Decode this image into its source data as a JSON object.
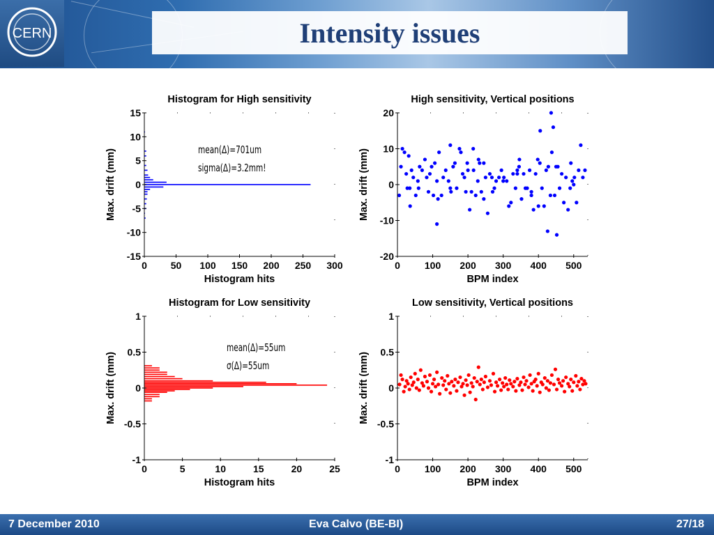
{
  "header": {
    "title": "Intensity issues",
    "logo_text": "CERN",
    "accent": "#1f3f77"
  },
  "footer": {
    "date": "7 December 2010",
    "author": "Eva Calvo (BE-BI)",
    "page": "27/18"
  },
  "annotations": {
    "high": [
      "mean(Δ)=701um",
      "sigma(Δ)=3.2mm!"
    ],
    "low": [
      "mean(Δ)=55um",
      "σ(Δ)=55um"
    ]
  },
  "chart_data": [
    {
      "id": "high-hist",
      "type": "bar",
      "orientation": "horizontal",
      "title": "Histogram for High sensitivity",
      "xlabel": "Histogram hits",
      "ylabel": "Max. drift (mm)",
      "xlim": [
        0,
        300
      ],
      "ylim": [
        -15,
        15
      ],
      "xticks": [
        0,
        50,
        100,
        150,
        200,
        250,
        300
      ],
      "yticks": [
        15,
        10,
        5,
        0,
        -5,
        -10,
        -15
      ],
      "color": "#0000ff",
      "bins": [
        {
          "y": 11.0,
          "count": 1
        },
        {
          "y": 7.0,
          "count": 3
        },
        {
          "y": 6.0,
          "count": 3
        },
        {
          "y": 4.0,
          "count": 3
        },
        {
          "y": 3.0,
          "count": 5
        },
        {
          "y": 2.0,
          "count": 6
        },
        {
          "y": 1.5,
          "count": 9
        },
        {
          "y": 1.0,
          "count": 14
        },
        {
          "y": 0.5,
          "count": 35
        },
        {
          "y": 0.0,
          "count": 262
        },
        {
          "y": -0.5,
          "count": 30
        },
        {
          "y": -1.0,
          "count": 9
        },
        {
          "y": -1.5,
          "count": 5
        },
        {
          "y": -2.0,
          "count": 5
        },
        {
          "y": -3.0,
          "count": 4
        },
        {
          "y": -4.0,
          "count": 3
        },
        {
          "y": -5.0,
          "count": 3
        },
        {
          "y": -6.0,
          "count": 1
        },
        {
          "y": -7.0,
          "count": 2
        }
      ]
    },
    {
      "id": "high-scatter",
      "type": "scatter",
      "title": "High sensitivity, Vertical positions",
      "xlabel": "BPM index",
      "ylabel": "Max. drift (mm)",
      "xlim": [
        0,
        540
      ],
      "ylim": [
        -20,
        20
      ],
      "xticks": [
        0,
        100,
        200,
        300,
        400,
        500
      ],
      "yticks": [
        20,
        10,
        0,
        -10,
        -20
      ],
      "color": "#0000ff",
      "points": [
        [
          5,
          -3
        ],
        [
          10,
          5
        ],
        [
          14,
          10
        ],
        [
          20,
          9
        ],
        [
          25,
          3
        ],
        [
          28,
          -1
        ],
        [
          32,
          8
        ],
        [
          36,
          -6
        ],
        [
          40,
          4
        ],
        [
          45,
          2
        ],
        [
          52,
          -3
        ],
        [
          58,
          1
        ],
        [
          63,
          5
        ],
        [
          70,
          4
        ],
        [
          78,
          7
        ],
        [
          83,
          2
        ],
        [
          88,
          -2
        ],
        [
          92,
          3
        ],
        [
          97,
          5
        ],
        [
          102,
          -3
        ],
        [
          106,
          6
        ],
        [
          112,
          1
        ],
        [
          115,
          -4
        ],
        [
          118,
          9
        ],
        [
          125,
          -3
        ],
        [
          130,
          2
        ],
        [
          137,
          4
        ],
        [
          145,
          1
        ],
        [
          152,
          -2
        ],
        [
          158,
          5
        ],
        [
          163,
          6
        ],
        [
          168,
          -1
        ],
        [
          176,
          10
        ],
        [
          180,
          9
        ],
        [
          185,
          3
        ],
        [
          190,
          2
        ],
        [
          194,
          -2
        ],
        [
          198,
          6
        ],
        [
          205,
          -7
        ],
        [
          210,
          -2
        ],
        [
          216,
          4
        ],
        [
          222,
          -3
        ],
        [
          228,
          1
        ],
        [
          233,
          6
        ],
        [
          238,
          -2
        ],
        [
          245,
          -4
        ],
        [
          250,
          2
        ],
        [
          256,
          -8
        ],
        [
          262,
          3
        ],
        [
          268,
          2
        ],
        [
          275,
          -1
        ],
        [
          280,
          1
        ],
        [
          288,
          2
        ],
        [
          295,
          4
        ],
        [
          302,
          2
        ],
        [
          310,
          1
        ],
        [
          316,
          -6
        ],
        [
          322,
          -5
        ],
        [
          328,
          3
        ],
        [
          335,
          -1
        ],
        [
          340,
          4
        ],
        [
          346,
          7
        ],
        [
          352,
          -4
        ],
        [
          358,
          3
        ],
        [
          363,
          -1
        ],
        [
          368,
          -1
        ],
        [
          375,
          4
        ],
        [
          380,
          -2
        ],
        [
          386,
          -7
        ],
        [
          392,
          3
        ],
        [
          398,
          7
        ],
        [
          404,
          6
        ],
        [
          410,
          -1
        ],
        [
          416,
          -6
        ],
        [
          422,
          4
        ],
        [
          428,
          5
        ],
        [
          434,
          -3
        ],
        [
          438,
          9
        ],
        [
          442,
          16
        ],
        [
          446,
          -3
        ],
        [
          450,
          5
        ],
        [
          455,
          5
        ],
        [
          460,
          -1
        ],
        [
          466,
          3
        ],
        [
          472,
          -5
        ],
        [
          478,
          2
        ],
        [
          484,
          -7
        ],
        [
          490,
          -1
        ],
        [
          496,
          1
        ],
        [
          502,
          2
        ],
        [
          508,
          -5
        ],
        [
          514,
          4
        ],
        [
          520,
          11
        ],
        [
          526,
          2
        ],
        [
          532,
          4
        ],
        [
          300,
          1
        ],
        [
          112,
          -11
        ],
        [
          215,
          10
        ],
        [
          380,
          -3
        ],
        [
          426,
          -13
        ],
        [
          452,
          -14
        ],
        [
          230,
          7
        ],
        [
          270,
          -2
        ],
        [
          400,
          -6
        ],
        [
          492,
          6
        ],
        [
          35,
          -1
        ],
        [
          150,
          -1
        ],
        [
          340,
          3
        ],
        [
          405,
          15
        ],
        [
          436,
          20
        ],
        [
          150,
          11
        ],
        [
          345,
          5
        ],
        [
          245,
          6
        ],
        [
          200,
          4
        ],
        [
          60,
          -1
        ],
        [
          500,
          0
        ]
      ]
    },
    {
      "id": "low-hist",
      "type": "bar",
      "orientation": "horizontal",
      "title": "Histogram for Low sensitivity",
      "xlabel": "Histogram hits",
      "ylabel": "Max. drift (mm)",
      "xlim": [
        0,
        25
      ],
      "ylim": [
        -1,
        1
      ],
      "xticks": [
        0,
        5,
        10,
        15,
        20,
        25
      ],
      "yticks": [
        1,
        0.5,
        0,
        -0.5,
        -1
      ],
      "color": "#ff0000",
      "bins": [
        {
          "y": 0.31,
          "count": 1
        },
        {
          "y": 0.28,
          "count": 2
        },
        {
          "y": 0.25,
          "count": 2
        },
        {
          "y": 0.22,
          "count": 3
        },
        {
          "y": 0.19,
          "count": 3
        },
        {
          "y": 0.16,
          "count": 4
        },
        {
          "y": 0.13,
          "count": 5
        },
        {
          "y": 0.1,
          "count": 9
        },
        {
          "y": 0.08,
          "count": 16
        },
        {
          "y": 0.06,
          "count": 20
        },
        {
          "y": 0.04,
          "count": 24
        },
        {
          "y": 0.02,
          "count": 13
        },
        {
          "y": 0.0,
          "count": 9
        },
        {
          "y": -0.02,
          "count": 6
        },
        {
          "y": -0.04,
          "count": 4
        },
        {
          "y": -0.06,
          "count": 3
        },
        {
          "y": -0.09,
          "count": 2
        },
        {
          "y": -0.12,
          "count": 2
        },
        {
          "y": -0.15,
          "count": 1
        },
        {
          "y": -0.18,
          "count": 1
        }
      ]
    },
    {
      "id": "low-scatter",
      "type": "scatter",
      "title": "Low sensitivity, Vertical positions",
      "xlabel": "BPM index",
      "ylabel": "Max. drift (mm)",
      "xlim": [
        0,
        540
      ],
      "ylim": [
        -1,
        1
      ],
      "xticks": [
        0,
        100,
        200,
        300,
        400,
        500
      ],
      "yticks": [
        1,
        0.5,
        0,
        -0.5,
        -1
      ],
      "color": "#ff0000",
      "points": [
        [
          6,
          0.05
        ],
        [
          10,
          0.18
        ],
        [
          14,
          0.12
        ],
        [
          18,
          -0.05
        ],
        [
          22,
          0.02
        ],
        [
          26,
          0.1
        ],
        [
          30,
          0.06
        ],
        [
          34,
          -0.02
        ],
        [
          38,
          0.15
        ],
        [
          42,
          0.04
        ],
        [
          46,
          0.08
        ],
        [
          50,
          0.2
        ],
        [
          54,
          0.0
        ],
        [
          58,
          0.12
        ],
        [
          62,
          -0.03
        ],
        [
          66,
          0.25
        ],
        [
          70,
          0.07
        ],
        [
          74,
          0.03
        ],
        [
          78,
          0.16
        ],
        [
          84,
          0.09
        ],
        [
          88,
          0.0
        ],
        [
          92,
          0.18
        ],
        [
          96,
          -0.05
        ],
        [
          100,
          0.06
        ],
        [
          104,
          0.12
        ],
        [
          108,
          0.02
        ],
        [
          112,
          0.22
        ],
        [
          116,
          0.05
        ],
        [
          120,
          -0.08
        ],
        [
          126,
          0.14
        ],
        [
          130,
          0.04
        ],
        [
          134,
          0.1
        ],
        [
          138,
          -0.02
        ],
        [
          142,
          0.17
        ],
        [
          146,
          0.06
        ],
        [
          150,
          -0.07
        ],
        [
          154,
          0.09
        ],
        [
          160,
          0.03
        ],
        [
          164,
          0.12
        ],
        [
          168,
          -0.04
        ],
        [
          172,
          0.08
        ],
        [
          178,
          0.15
        ],
        [
          182,
          0.02
        ],
        [
          186,
          0.06
        ],
        [
          190,
          -0.1
        ],
        [
          194,
          0.11
        ],
        [
          198,
          0.04
        ],
        [
          202,
          0.18
        ],
        [
          206,
          -0.06
        ],
        [
          210,
          0.07
        ],
        [
          214,
          0.02
        ],
        [
          218,
          0.14
        ],
        [
          222,
          -0.16
        ],
        [
          226,
          0.09
        ],
        [
          230,
          0.29
        ],
        [
          234,
          0.05
        ],
        [
          238,
          0.12
        ],
        [
          242,
          -0.02
        ],
        [
          246,
          0.08
        ],
        [
          250,
          0.16
        ],
        [
          256,
          0.01
        ],
        [
          262,
          0.1
        ],
        [
          266,
          0.04
        ],
        [
          272,
          0.2
        ],
        [
          276,
          -0.05
        ],
        [
          280,
          0.08
        ],
        [
          284,
          0.03
        ],
        [
          290,
          0.12
        ],
        [
          294,
          -0.03
        ],
        [
          298,
          0.07
        ],
        [
          302,
          0.02
        ],
        [
          306,
          0.14
        ],
        [
          310,
          0.05
        ],
        [
          314,
          -0.02
        ],
        [
          318,
          0.11
        ],
        [
          322,
          0.06
        ],
        [
          328,
          0.02
        ],
        [
          332,
          0.09
        ],
        [
          336,
          -0.04
        ],
        [
          340,
          0.13
        ],
        [
          346,
          0.04
        ],
        [
          350,
          0.08
        ],
        [
          354,
          -0.03
        ],
        [
          358,
          0.15
        ],
        [
          362,
          0.05
        ],
        [
          366,
          0.1
        ],
        [
          372,
          0.01
        ],
        [
          376,
          0.18
        ],
        [
          380,
          0.06
        ],
        [
          384,
          -0.04
        ],
        [
          388,
          0.09
        ],
        [
          392,
          0.12
        ],
        [
          396,
          0.03
        ],
        [
          400,
          0.2
        ],
        [
          404,
          -0.06
        ],
        [
          408,
          0.08
        ],
        [
          412,
          0.05
        ],
        [
          418,
          0.14
        ],
        [
          422,
          0.0
        ],
        [
          426,
          0.1
        ],
        [
          430,
          -0.03
        ],
        [
          434,
          0.07
        ],
        [
          438,
          0.18
        ],
        [
          444,
          0.05
        ],
        [
          448,
          0.26
        ],
        [
          452,
          -0.02
        ],
        [
          456,
          0.12
        ],
        [
          460,
          0.07
        ],
        [
          466,
          0.03
        ],
        [
          470,
          0.1
        ],
        [
          474,
          -0.05
        ],
        [
          478,
          0.15
        ],
        [
          484,
          0.06
        ],
        [
          488,
          0.02
        ],
        [
          492,
          0.12
        ],
        [
          496,
          -0.04
        ],
        [
          500,
          0.08
        ],
        [
          506,
          0.17
        ],
        [
          510,
          0.03
        ],
        [
          514,
          0.09
        ],
        [
          518,
          -0.02
        ],
        [
          522,
          0.13
        ],
        [
          526,
          0.05
        ],
        [
          530,
          0.1
        ],
        [
          534,
          0.06
        ]
      ]
    }
  ]
}
